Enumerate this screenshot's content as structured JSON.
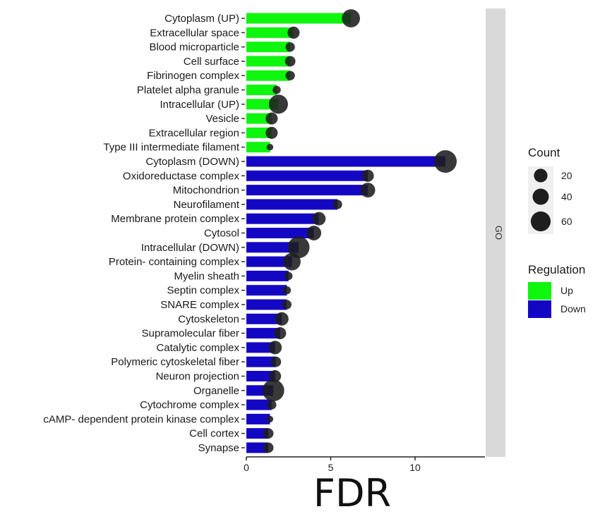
{
  "chart_data": {
    "type": "bar",
    "subtype": "horizontal bar with bubble overlay",
    "title": "",
    "xlabel": "FDR",
    "ylabel": "",
    "xlim": [
      0,
      14.0
    ],
    "xticks": [
      0,
      5,
      10
    ],
    "facet_strip": "GO",
    "categories": [
      "Cytoplasm (UP)",
      "Extracellular space",
      "Blood microparticle",
      "Cell surface",
      "Fibrinogen complex",
      "Platelet alpha granule",
      "Intracellular (UP)",
      "Vesicle",
      "Extracellular region",
      "Type III intermediate filament",
      "Cytoplasm (DOWN)",
      "Oxidoreductase complex",
      "Mitochondrion",
      "Neurofilament",
      "Membrane protein complex",
      "Cytosol",
      "Intracellular (DOWN)",
      "Protein- containing complex",
      "Myelin sheath",
      "Septin complex",
      "SNARE complex",
      "Cytoskeleton",
      "Supramolecular fiber",
      "Catalytic complex",
      "Polymeric cytoskeletal fiber",
      "Neuron projection",
      "Organelle",
      "Cytochrome complex",
      "cAMP- dependent protein kinase complex",
      "Cell cortex",
      "Synapse"
    ],
    "values": [
      6.2,
      2.8,
      2.6,
      2.6,
      2.6,
      1.8,
      1.9,
      1.5,
      1.5,
      1.4,
      11.8,
      7.2,
      7.2,
      5.4,
      4.3,
      4.0,
      3.1,
      2.7,
      2.5,
      2.4,
      2.4,
      2.1,
      2.0,
      1.7,
      1.75,
      1.7,
      1.6,
      1.5,
      1.4,
      1.3,
      1.3
    ],
    "count": [
      45,
      20,
      12,
      15,
      12,
      9,
      50,
      20,
      20,
      6,
      70,
      20,
      30,
      12,
      25,
      30,
      65,
      42,
      9,
      9,
      12,
      25,
      20,
      25,
      15,
      20,
      65,
      12,
      6,
      15,
      15
    ],
    "regulation": [
      "Up",
      "Up",
      "Up",
      "Up",
      "Up",
      "Up",
      "Up",
      "Up",
      "Up",
      "Up",
      "Down",
      "Down",
      "Down",
      "Down",
      "Down",
      "Down",
      "Down",
      "Down",
      "Down",
      "Down",
      "Down",
      "Down",
      "Down",
      "Down",
      "Down",
      "Down",
      "Down",
      "Down",
      "Down",
      "Down",
      "Down"
    ],
    "legend": {
      "count_title": "Count",
      "count_levels": [
        20,
        40,
        60
      ],
      "regulation_title": "Regulation",
      "regulation_levels": [
        {
          "label": "Up",
          "color": "#0ef50e"
        },
        {
          "label": "Down",
          "color": "#1407c4"
        }
      ]
    },
    "colors": {
      "up": "#0ef50e",
      "down": "#1407c4",
      "bubble": "#1e1e1e",
      "strip": "#d9d9d9"
    },
    "grid": false,
    "legend_position": "right"
  }
}
